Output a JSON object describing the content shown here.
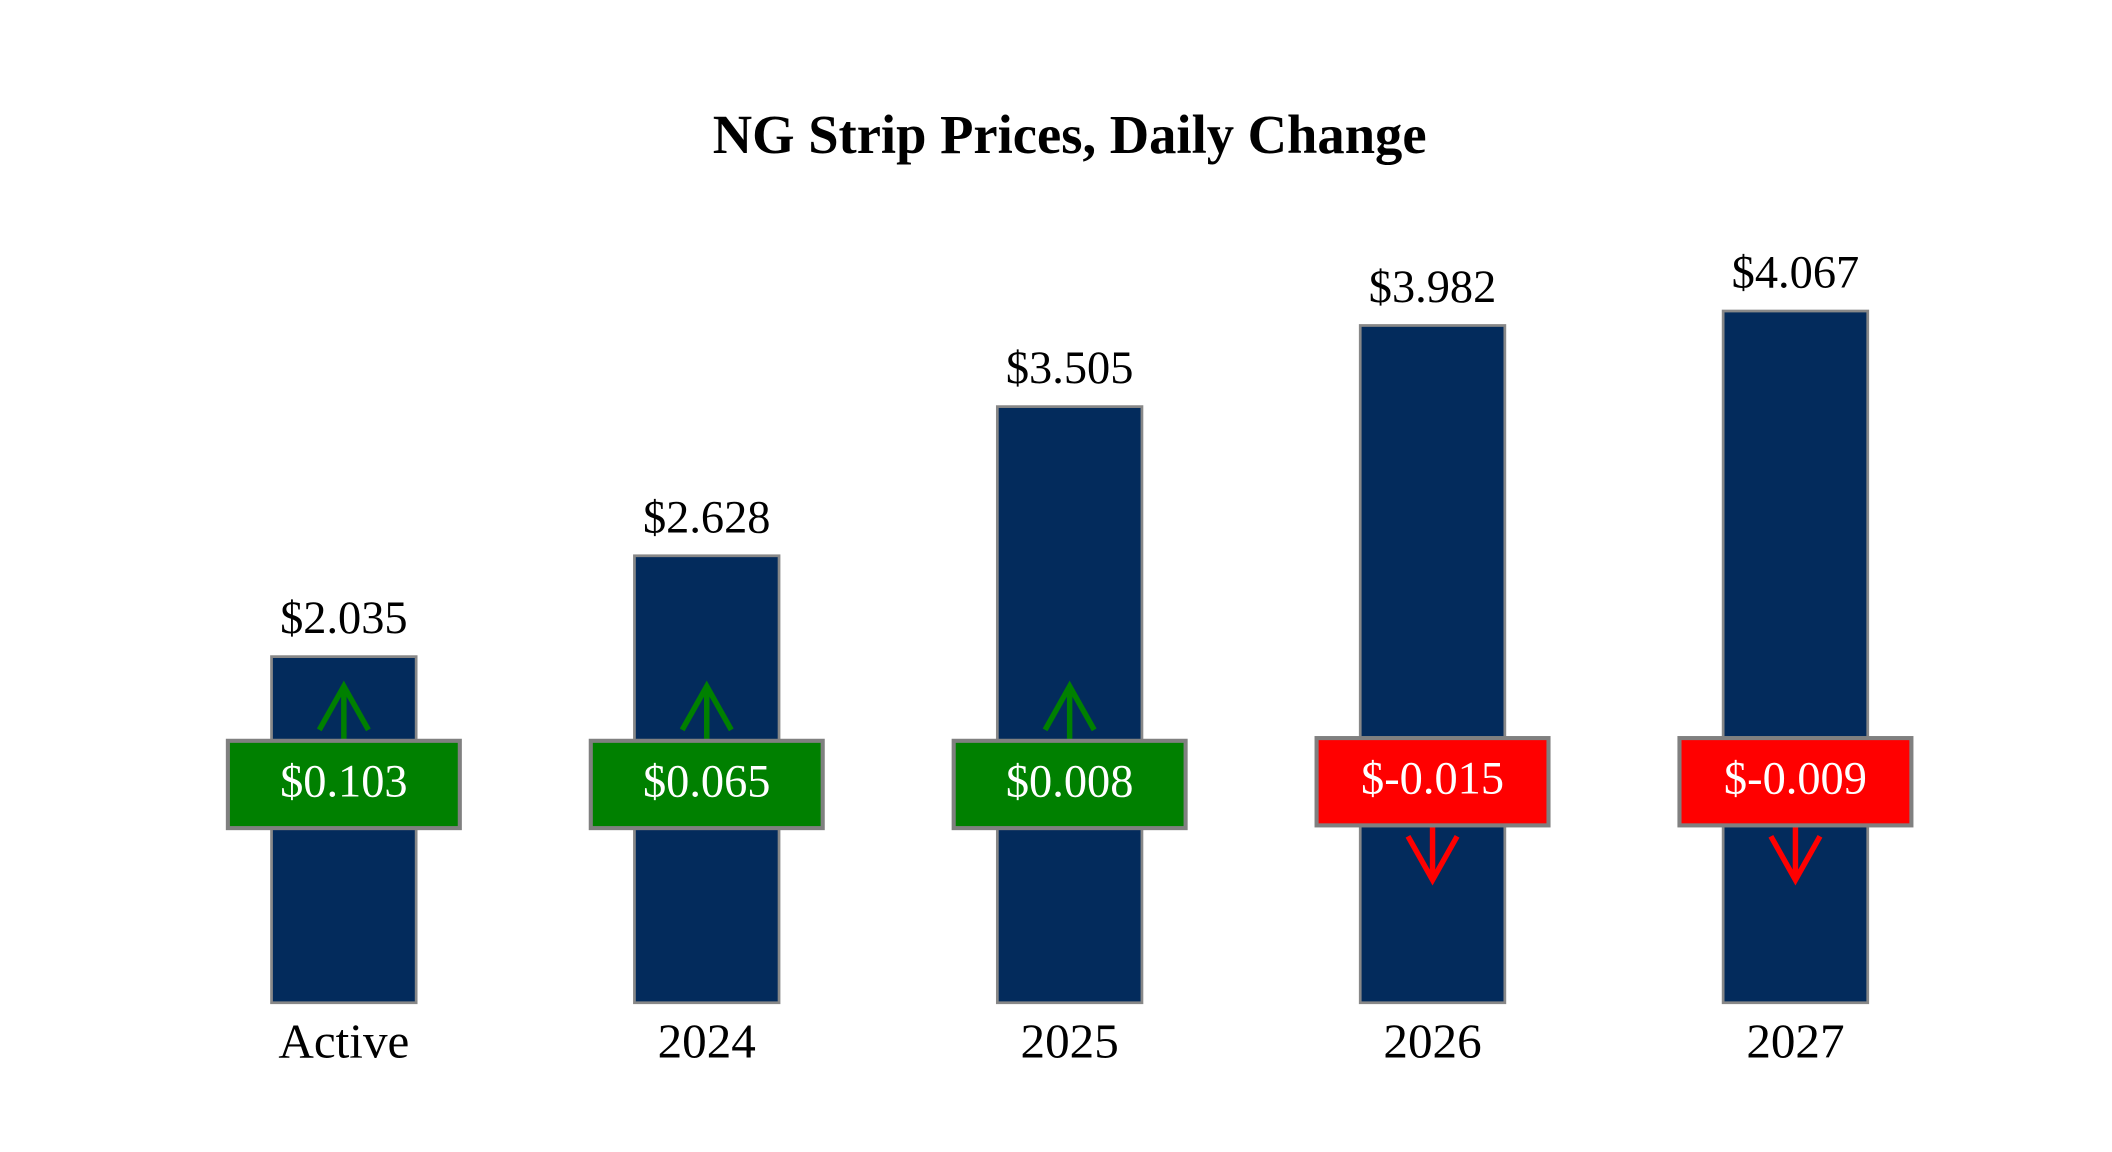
{
  "chart_data": {
    "type": "bar",
    "title": "NG Strip Prices, Daily Change",
    "categories": [
      "Active",
      "2024",
      "2025",
      "2026",
      "2027"
    ],
    "values": [
      2.035,
      2.628,
      3.505,
      3.982,
      4.067
    ],
    "value_labels": [
      "$2.035",
      "$2.628",
      "$3.505",
      "$3.982",
      "$4.067"
    ],
    "color": "#032b5c",
    "ylim": [
      0,
      4.5
    ],
    "changes": {
      "values": [
        0.103,
        0.065,
        0.008,
        -0.015,
        -0.009
      ],
      "value_labels": [
        "$0.103",
        "$0.065",
        "$0.008",
        "$-0.015",
        "$-0.009"
      ]
    },
    "up_color": "#008000",
    "down_color": "#ff0000"
  }
}
